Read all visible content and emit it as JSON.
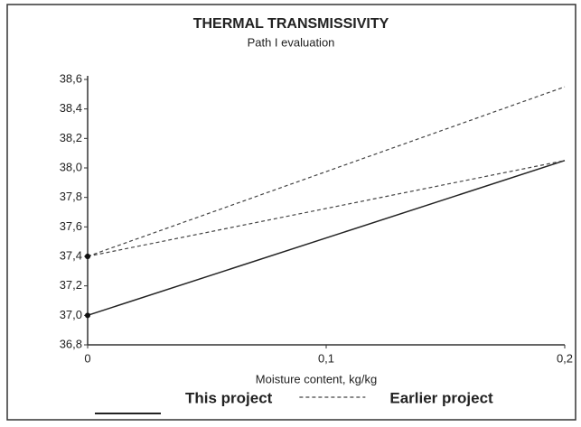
{
  "chart_data": {
    "type": "line",
    "title": "THERMAL TRANSMISSIVITY",
    "subtitle": "Path I evaluation",
    "x_label": "Moisture content, kg/kg",
    "x": [
      0,
      0.2
    ],
    "series": [
      {
        "name": "This project",
        "color": "#222222",
        "dash": false,
        "values": [
          37.0,
          38.05
        ]
      },
      {
        "name": "Earlier project",
        "color": "#444444",
        "dash": true,
        "values": [
          37.4,
          38.55
        ]
      },
      {
        "color": "#444444",
        "dash": true,
        "values": [
          37.4,
          38.05
        ]
      }
    ],
    "xlim": [
      0,
      0.2
    ],
    "xticks": [
      0,
      {
        "value": 0.1,
        "label": "0,1"
      },
      {
        "value": 0.2,
        "label": "0,2"
      }
    ],
    "ylim": [
      36.8,
      38.6
    ],
    "yticks": [
      {
        "value": 36.8,
        "label": "36,8"
      },
      {
        "value": 37.0,
        "label": "37,0"
      },
      {
        "value": 37.2,
        "label": "37,2"
      },
      {
        "value": 37.4,
        "label": "37,4"
      },
      {
        "value": 37.6,
        "label": "37,6"
      },
      {
        "value": 37.8,
        "label": "37,8"
      },
      {
        "value": 38.0,
        "label": "38,0"
      },
      {
        "value": 38.2,
        "label": "38,2"
      },
      {
        "value": 38.4,
        "label": "38,4"
      },
      {
        "value": 38.6,
        "label": "38,6"
      }
    ],
    "grid": false,
    "legend": "bottom"
  }
}
